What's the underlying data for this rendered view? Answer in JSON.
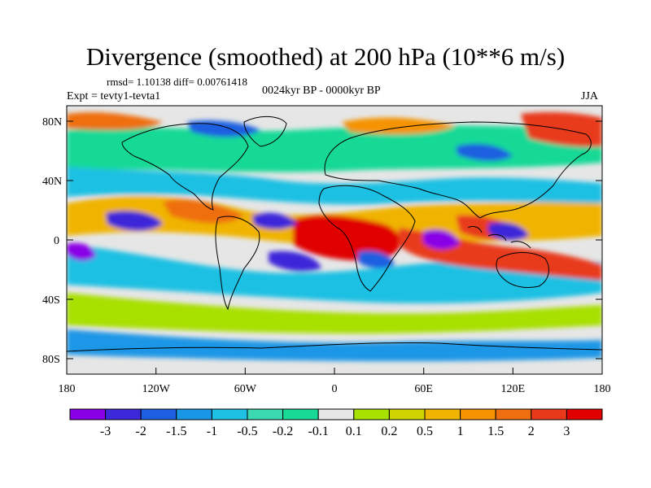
{
  "title": "Divergence (smoothed) at 200 hPa (10**6 m/s)",
  "stats": "rmsd= 1.10138 diff= 0.00761418",
  "expt": "Expt = tevty1-tevta1",
  "period": "0024kyr BP - 0000kyr BP",
  "season": "JJA",
  "lat_labels": [
    "80N",
    "40N",
    "0",
    "40S",
    "80S"
  ],
  "lon_labels": [
    "180",
    "120W",
    "60W",
    "0",
    "60E",
    "120E",
    "180"
  ],
  "colorbar": {
    "colors": [
      "#8a00e6",
      "#3c28d9",
      "#1d5fe0",
      "#1a96e6",
      "#1ec0e3",
      "#3bd9b0",
      "#19d996",
      "#e6e6e6",
      "#a8e000",
      "#cfd400",
      "#f0b400",
      "#f59300",
      "#ef6e10",
      "#e83a1a",
      "#e00000"
    ],
    "labels": [
      "-3",
      "-2",
      "-1.5",
      "-1",
      "-0.5",
      "-0.2",
      "-0.1",
      "0.1",
      "0.2",
      "0.5",
      "1",
      "1.5",
      "2",
      "3"
    ]
  }
}
